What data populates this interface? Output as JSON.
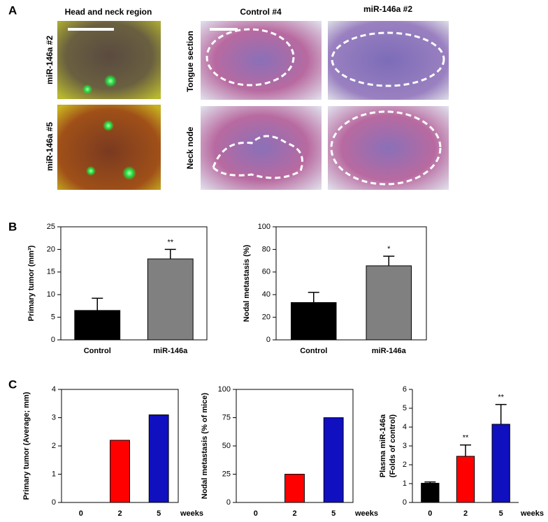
{
  "panel_labels": [
    "A",
    "B",
    "C"
  ],
  "panel_a": {
    "photo_title": "Head and neck region",
    "photo_rows": [
      "miR-146a #2",
      "miR-146a #5"
    ],
    "histology_columns": [
      "Control #4",
      "miR-146a #2"
    ],
    "histology_rows": [
      "Tongue section",
      "Neck node"
    ]
  },
  "chart_data": [
    {
      "type": "bar",
      "ylabel": "Primary tumor (mm³)",
      "categories": [
        "Control",
        "miR-146a"
      ],
      "values": [
        6.5,
        17.9
      ],
      "errors": [
        2.7,
        2.1
      ],
      "colors": [
        "#000000",
        "#808080"
      ],
      "annotations": [
        null,
        "**"
      ],
      "ylim": [
        0,
        25
      ],
      "yticks": [
        0,
        5,
        10,
        15,
        20,
        25
      ],
      "frame": true
    },
    {
      "type": "bar",
      "ylabel": "Nodal metastasis (%)",
      "categories": [
        "Control",
        "miR-146a"
      ],
      "values": [
        33,
        65.5
      ],
      "errors": [
        9,
        8.5
      ],
      "colors": [
        "#000000",
        "#808080"
      ],
      "annotations": [
        null,
        "*"
      ],
      "ylim": [
        0,
        100
      ],
      "yticks": [
        0,
        20,
        40,
        60,
        80,
        100
      ],
      "frame": true
    },
    {
      "type": "bar",
      "ylabel": "Primary tumor (Average; mm)",
      "xlabel": "weeks",
      "categories": [
        "0",
        "2",
        "5"
      ],
      "values": [
        0,
        2.2,
        3.1
      ],
      "colors": [
        "#ff0000",
        "#ff0000",
        "#1010c0"
      ],
      "ylim": [
        0,
        4
      ],
      "yticks": [
        0,
        1,
        2,
        3,
        4
      ],
      "frame": true
    },
    {
      "type": "bar",
      "ylabel": "Nodal metastasis (% of mice)",
      "xlabel": "weeks",
      "categories": [
        "0",
        "2",
        "5"
      ],
      "values": [
        0,
        25,
        75
      ],
      "colors": [
        "#ff0000",
        "#ff0000",
        "#1010c0"
      ],
      "ylim": [
        0,
        100
      ],
      "yticks": [
        0,
        25,
        50,
        75,
        100
      ],
      "frame": true
    },
    {
      "type": "bar",
      "ylabel": [
        "Plasma miR-146a",
        "(Folds of control)"
      ],
      "xlabel": "weeks",
      "categories": [
        "0",
        "2",
        "5"
      ],
      "values": [
        1.02,
        2.45,
        4.15
      ],
      "errors": [
        0.07,
        0.6,
        1.05
      ],
      "colors": [
        "#000000",
        "#ff0000",
        "#1010c0"
      ],
      "annotations": [
        null,
        "**",
        "**"
      ],
      "ylim": [
        0,
        6
      ],
      "yticks": [
        0,
        1,
        2,
        3,
        4,
        5,
        6
      ],
      "frame": false
    }
  ]
}
